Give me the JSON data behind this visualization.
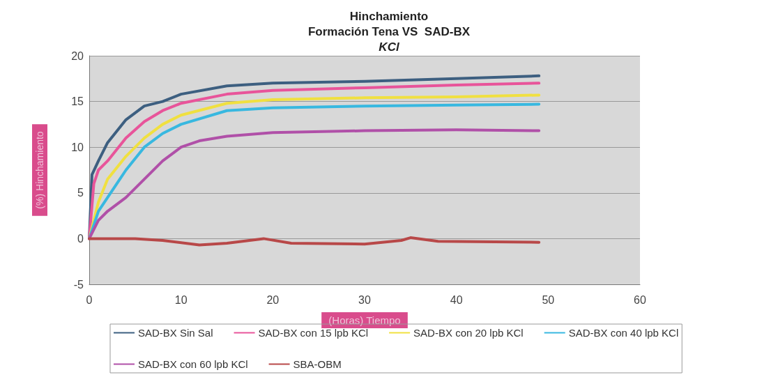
{
  "chart_data": {
    "type": "line",
    "title": "Hinchamiento",
    "subtitle": "Formación Tena VS  SAD-BX\nKCl",
    "xlabel": "(Horas) Tiempo",
    "ylabel": "(%) Hinchamiento",
    "xlim": [
      0,
      60
    ],
    "xticks": [
      0,
      10,
      20,
      30,
      40,
      50,
      60
    ],
    "ylim": [
      -5,
      20
    ],
    "yticks": [
      -5,
      0,
      5,
      10,
      15,
      20
    ],
    "grid": "y",
    "legend": "bottom",
    "marker": "none",
    "line_style": "solid",
    "series": [
      {
        "name": "SAD-BX Sin Sal",
        "color": "#3d5f80",
        "x": [
          0,
          0.3,
          1,
          2,
          4,
          6,
          8,
          10,
          15,
          20,
          30,
          40,
          49
        ],
        "values": [
          0,
          7,
          8.5,
          10.5,
          13,
          14.5,
          15,
          15.8,
          16.7,
          17,
          17.2,
          17.5,
          17.8
        ]
      },
      {
        "name": "SAD-BX con 15 lpb KCl",
        "color": "#e8549a",
        "x": [
          0,
          0.5,
          1,
          2,
          4,
          6,
          8,
          10,
          15,
          20,
          30,
          40,
          49
        ],
        "values": [
          0,
          6,
          7.5,
          8.5,
          11,
          12.8,
          14,
          14.8,
          15.8,
          16.2,
          16.5,
          16.8,
          17
        ]
      },
      {
        "name": "SAD-BX con 20 lpb KCl",
        "color": "#f0e040",
        "x": [
          0,
          1,
          2,
          4,
          6,
          8,
          10,
          15,
          20,
          30,
          40,
          49
        ],
        "values": [
          0,
          4,
          6.5,
          9,
          11,
          12.5,
          13.5,
          14.8,
          15.2,
          15.4,
          15.5,
          15.7
        ]
      },
      {
        "name": "SAD-BX con 40 lpb KCl",
        "color": "#38b8e0",
        "x": [
          0,
          1,
          2,
          4,
          6,
          8,
          10,
          15,
          20,
          30,
          40,
          49
        ],
        "values": [
          0,
          3,
          4.5,
          7.5,
          10,
          11.5,
          12.5,
          14,
          14.3,
          14.5,
          14.6,
          14.7
        ]
      },
      {
        "name": "SAD-BX con 60 lpb KCl",
        "color": "#b050a8",
        "x": [
          0,
          1,
          2,
          4,
          6,
          8,
          10,
          12,
          15,
          20,
          30,
          40,
          49
        ],
        "values": [
          0,
          2,
          3,
          4.5,
          6.5,
          8.5,
          10,
          10.7,
          11.2,
          11.6,
          11.8,
          11.9,
          11.8
        ]
      },
      {
        "name": "SBA-OBM",
        "color": "#b84848",
        "x": [
          0,
          5,
          8,
          12,
          15,
          19,
          22,
          30,
          34,
          35,
          38,
          49
        ],
        "values": [
          0,
          0,
          -0.2,
          -0.7,
          -0.5,
          0,
          -0.5,
          -0.6,
          -0.2,
          0.1,
          -0.3,
          -0.4
        ]
      }
    ]
  }
}
